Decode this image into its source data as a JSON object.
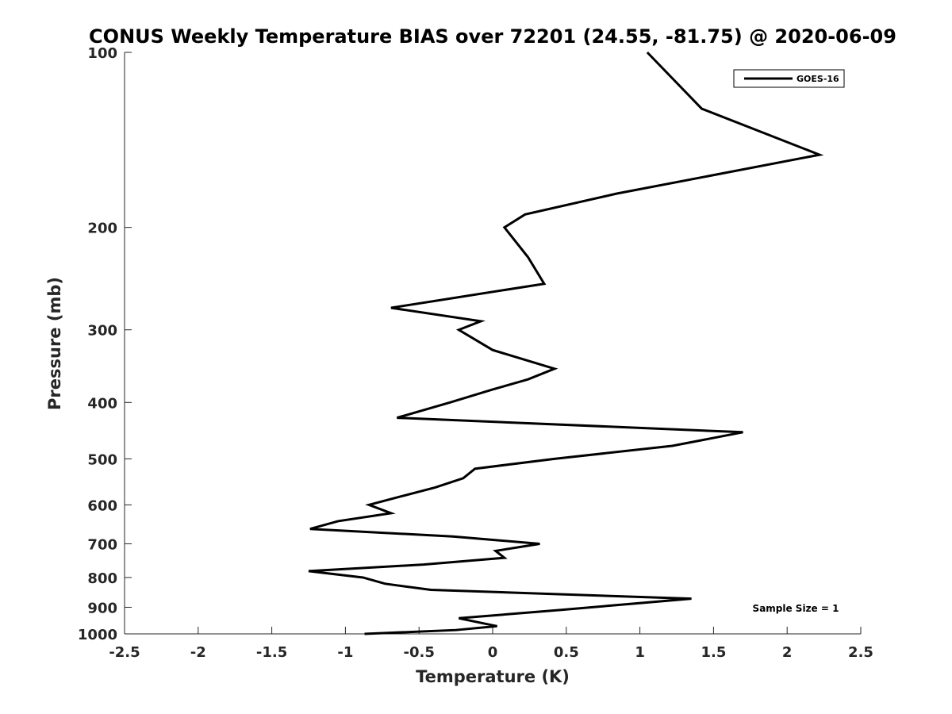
{
  "chart_data": {
    "type": "line",
    "title": "CONUS Weekly Temperature BIAS over 72201 (24.55, -81.75) @ 2020-06-09",
    "xlabel": "Temperature (K)",
    "ylabel": "Pressure (mb)",
    "xlim": [
      -2.5,
      2.5
    ],
    "ylim": [
      100,
      1000
    ],
    "yscale": "log",
    "yreversed": true,
    "x_ticks": [
      -2.5,
      -2,
      -1.5,
      -1,
      -0.5,
      0,
      0.5,
      1,
      1.5,
      2,
      2.5
    ],
    "x_tick_labels": [
      "-2.5",
      "-2",
      "-1.5",
      "-1",
      "-0.5",
      "0",
      "0.5",
      "1",
      "1.5",
      "2",
      "2.5"
    ],
    "y_ticks": [
      100,
      200,
      300,
      400,
      500,
      600,
      700,
      800,
      900,
      1000
    ],
    "y_tick_labels": [
      "100",
      "200",
      "300",
      "400",
      "500",
      "600",
      "700",
      "800",
      "900",
      "1000"
    ],
    "grid": false,
    "legend_position": "top-right",
    "series": [
      {
        "name": "GOES-16",
        "color": "#000000",
        "points": [
          [
            1.05,
            100
          ],
          [
            1.42,
            125
          ],
          [
            2.22,
            150
          ],
          [
            0.84,
            175
          ],
          [
            0.22,
            190
          ],
          [
            0.08,
            200
          ],
          [
            0.24,
            225
          ],
          [
            0.35,
            250
          ],
          [
            -0.69,
            275
          ],
          [
            -0.08,
            290
          ],
          [
            -0.23,
            300
          ],
          [
            0.0,
            325
          ],
          [
            0.42,
            350
          ],
          [
            0.24,
            365
          ],
          [
            0.0,
            380
          ],
          [
            -0.29,
            400
          ],
          [
            -0.65,
            425
          ],
          [
            1.7,
            450
          ],
          [
            1.22,
            475
          ],
          [
            0.42,
            500
          ],
          [
            -0.12,
            520
          ],
          [
            -0.2,
            540
          ],
          [
            -0.39,
            560
          ],
          [
            -0.62,
            580
          ],
          [
            -0.84,
            600
          ],
          [
            -0.69,
            620
          ],
          [
            -1.05,
            640
          ],
          [
            -1.24,
            660
          ],
          [
            -0.27,
            680
          ],
          [
            0.32,
            700
          ],
          [
            0.02,
            720
          ],
          [
            0.08,
            740
          ],
          [
            -0.47,
            760
          ],
          [
            -1.25,
            780
          ],
          [
            -0.88,
            800
          ],
          [
            -0.73,
            820
          ],
          [
            -0.42,
            840
          ],
          [
            1.35,
            870
          ],
          [
            0.45,
            910
          ],
          [
            -0.23,
            940
          ],
          [
            0.03,
            970
          ],
          [
            -0.25,
            985
          ],
          [
            -0.87,
            1000
          ]
        ]
      }
    ],
    "annotations": [
      {
        "text": "Sample Size = 1"
      }
    ]
  }
}
